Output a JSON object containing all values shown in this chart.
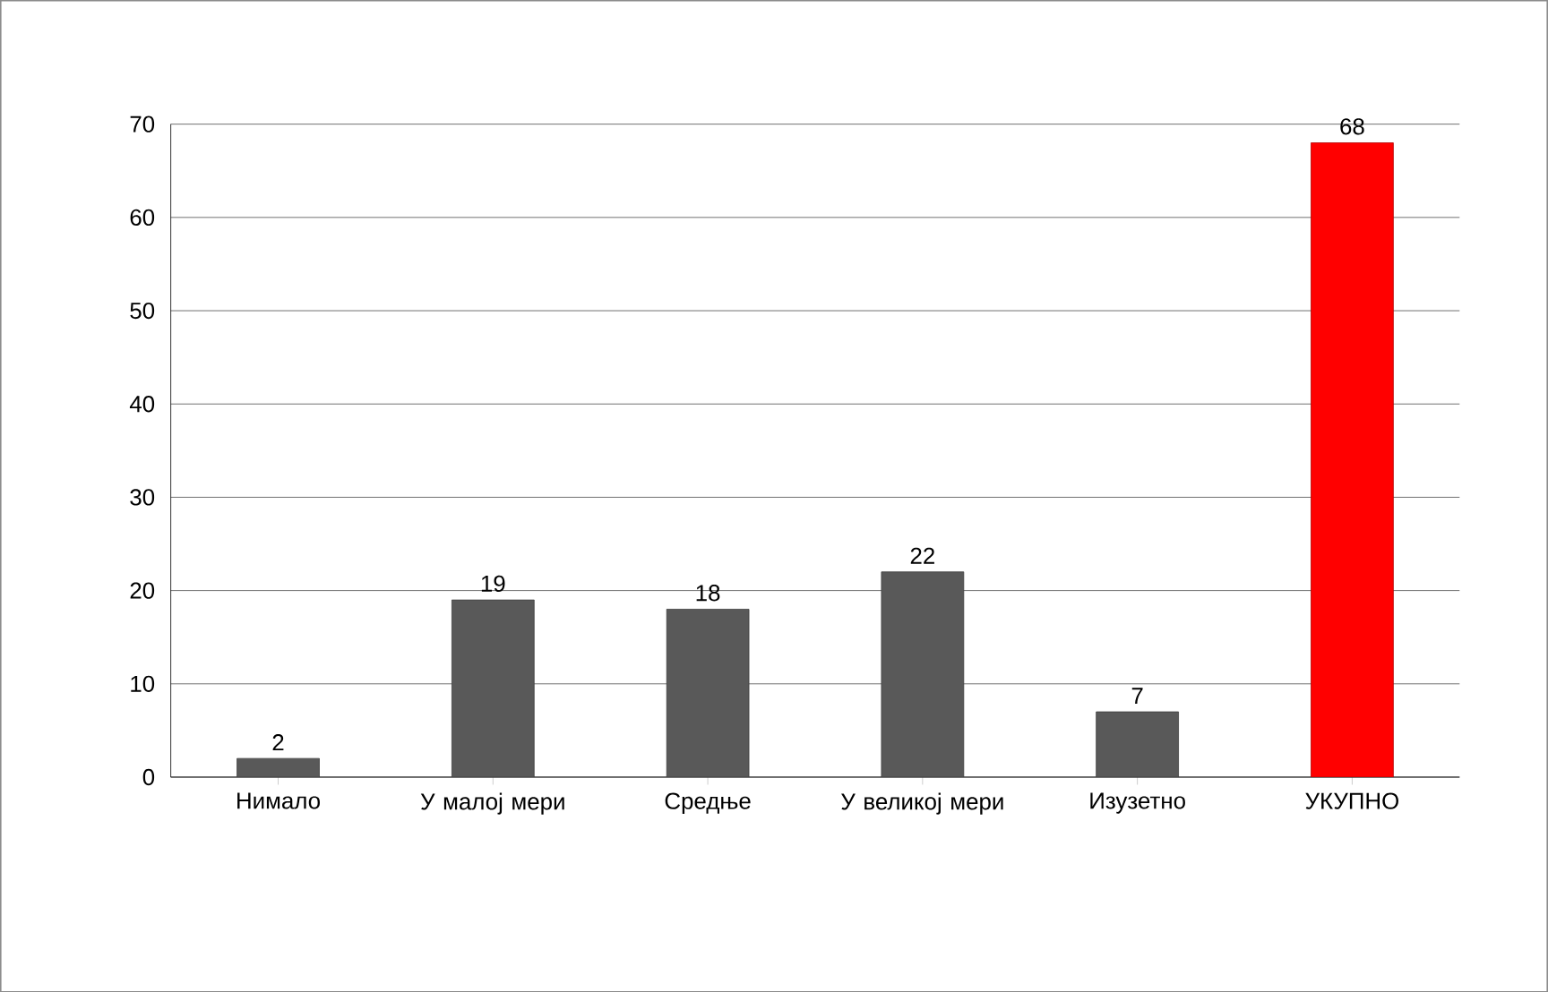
{
  "chart_data": {
    "type": "bar",
    "categories": [
      "Нимало",
      "У малој мери",
      "Средње",
      "У великој мери",
      "Изузетно",
      "УКУПНО"
    ],
    "values": [
      2,
      19,
      18,
      22,
      7,
      68
    ],
    "colors": [
      "#595959",
      "#595959",
      "#595959",
      "#595959",
      "#595959",
      "#ff0000"
    ],
    "ylim": [
      0,
      70
    ],
    "yticks": [
      0,
      10,
      20,
      30,
      40,
      50,
      60,
      70
    ],
    "grid": "y",
    "data_labels": true
  }
}
